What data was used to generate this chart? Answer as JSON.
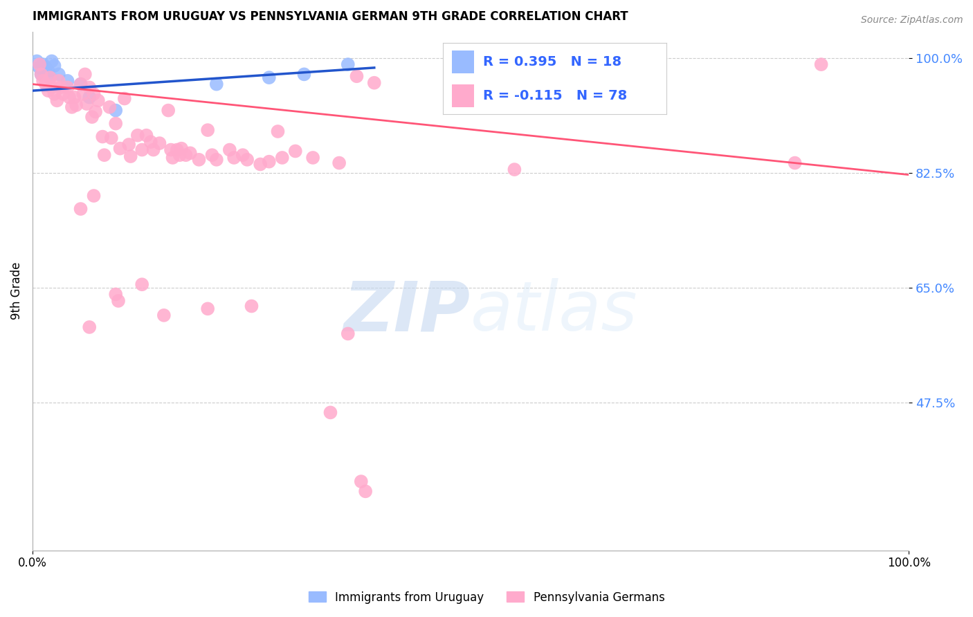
{
  "title": "IMMIGRANTS FROM URUGUAY VS PENNSYLVANIA GERMAN 9TH GRADE CORRELATION CHART",
  "source": "Source: ZipAtlas.com",
  "ylabel": "9th Grade",
  "ytick_vals": [
    0.475,
    0.65,
    0.825,
    1.0
  ],
  "ytick_labels": [
    "47.5%",
    "65.0%",
    "82.5%",
    "100.0%"
  ],
  "xtick_vals": [
    0.0,
    1.0
  ],
  "xtick_labels": [
    "0.0%",
    "100.0%"
  ],
  "xlim": [
    0.0,
    1.0
  ],
  "ylim": [
    0.25,
    1.04
  ],
  "watermark_zip": "ZIP",
  "watermark_atlas": "atlas",
  "legend_label_blue": "Immigrants from Uruguay",
  "legend_label_pink": "Pennsylvania Germans",
  "blue_color": "#99bbff",
  "pink_color": "#ffaacc",
  "blue_line_color": "#2255cc",
  "pink_line_color": "#ff5577",
  "blue_dots": [
    [
      0.005,
      0.995
    ],
    [
      0.008,
      0.985
    ],
    [
      0.01,
      0.975
    ],
    [
      0.012,
      0.99
    ],
    [
      0.015,
      0.985
    ],
    [
      0.018,
      0.98
    ],
    [
      0.02,
      0.97
    ],
    [
      0.022,
      0.995
    ],
    [
      0.025,
      0.988
    ],
    [
      0.03,
      0.975
    ],
    [
      0.04,
      0.965
    ],
    [
      0.055,
      0.96
    ],
    [
      0.065,
      0.94
    ],
    [
      0.095,
      0.92
    ],
    [
      0.21,
      0.96
    ],
    [
      0.27,
      0.97
    ],
    [
      0.31,
      0.975
    ],
    [
      0.36,
      0.99
    ]
  ],
  "pink_dots": [
    [
      0.008,
      0.99
    ],
    [
      0.01,
      0.975
    ],
    [
      0.012,
      0.965
    ],
    [
      0.015,
      0.96
    ],
    [
      0.018,
      0.95
    ],
    [
      0.02,
      0.97
    ],
    [
      0.022,
      0.955
    ],
    [
      0.025,
      0.945
    ],
    [
      0.028,
      0.935
    ],
    [
      0.03,
      0.965
    ],
    [
      0.032,
      0.955
    ],
    [
      0.035,
      0.945
    ],
    [
      0.04,
      0.955
    ],
    [
      0.042,
      0.94
    ],
    [
      0.045,
      0.925
    ],
    [
      0.048,
      0.94
    ],
    [
      0.05,
      0.928
    ],
    [
      0.055,
      0.96
    ],
    [
      0.058,
      0.945
    ],
    [
      0.06,
      0.975
    ],
    [
      0.062,
      0.93
    ],
    [
      0.065,
      0.955
    ],
    [
      0.068,
      0.91
    ],
    [
      0.07,
      0.945
    ],
    [
      0.072,
      0.918
    ],
    [
      0.075,
      0.935
    ],
    [
      0.08,
      0.88
    ],
    [
      0.082,
      0.852
    ],
    [
      0.088,
      0.925
    ],
    [
      0.09,
      0.878
    ],
    [
      0.095,
      0.9
    ],
    [
      0.1,
      0.862
    ],
    [
      0.105,
      0.938
    ],
    [
      0.11,
      0.868
    ],
    [
      0.112,
      0.85
    ],
    [
      0.12,
      0.882
    ],
    [
      0.125,
      0.86
    ],
    [
      0.13,
      0.882
    ],
    [
      0.135,
      0.872
    ],
    [
      0.138,
      0.86
    ],
    [
      0.145,
      0.87
    ],
    [
      0.155,
      0.92
    ],
    [
      0.158,
      0.86
    ],
    [
      0.16,
      0.848
    ],
    [
      0.165,
      0.86
    ],
    [
      0.168,
      0.852
    ],
    [
      0.17,
      0.862
    ],
    [
      0.175,
      0.852
    ],
    [
      0.18,
      0.855
    ],
    [
      0.19,
      0.845
    ],
    [
      0.2,
      0.89
    ],
    [
      0.205,
      0.852
    ],
    [
      0.21,
      0.845
    ],
    [
      0.225,
      0.86
    ],
    [
      0.23,
      0.848
    ],
    [
      0.24,
      0.852
    ],
    [
      0.245,
      0.845
    ],
    [
      0.26,
      0.838
    ],
    [
      0.27,
      0.842
    ],
    [
      0.28,
      0.888
    ],
    [
      0.285,
      0.848
    ],
    [
      0.3,
      0.858
    ],
    [
      0.32,
      0.848
    ],
    [
      0.35,
      0.84
    ],
    [
      0.37,
      0.972
    ],
    [
      0.39,
      0.962
    ],
    [
      0.095,
      0.64
    ],
    [
      0.098,
      0.63
    ],
    [
      0.125,
      0.655
    ],
    [
      0.15,
      0.608
    ],
    [
      0.2,
      0.618
    ],
    [
      0.25,
      0.622
    ],
    [
      0.055,
      0.77
    ],
    [
      0.07,
      0.79
    ],
    [
      0.55,
      0.83
    ],
    [
      0.87,
      0.84
    ],
    [
      0.9,
      0.99
    ],
    [
      0.065,
      0.59
    ],
    [
      0.34,
      0.46
    ],
    [
      0.36,
      0.58
    ],
    [
      0.375,
      0.355
    ],
    [
      0.38,
      0.34
    ]
  ],
  "blue_line": {
    "x0": 0.0,
    "x1": 0.39,
    "y0": 0.95,
    "y1": 0.985
  },
  "pink_line": {
    "x0": 0.0,
    "x1": 1.0,
    "y0": 0.96,
    "y1": 0.822
  }
}
